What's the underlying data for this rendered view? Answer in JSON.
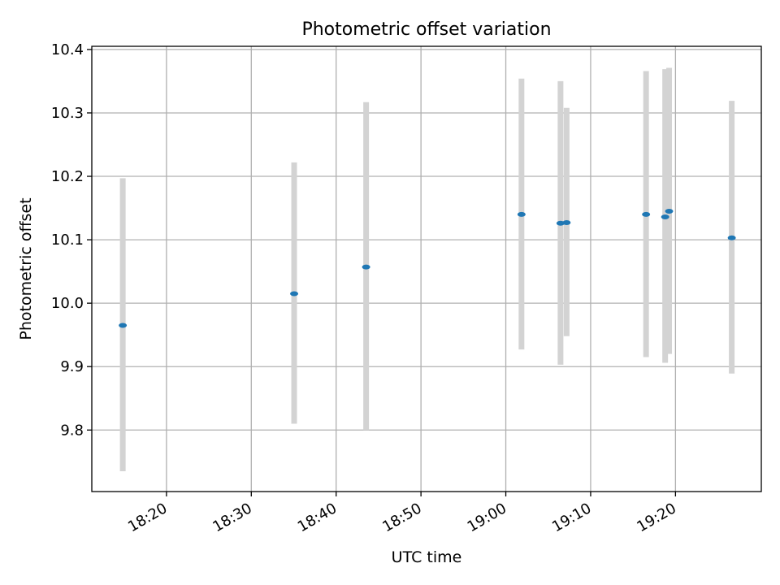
{
  "chart_data": {
    "type": "scatter",
    "title": "Photometric offset variation",
    "xlabel": "UTC time",
    "ylabel": "Photometric offset",
    "xlim": [
      "18:11:12",
      "19:30:07"
    ],
    "ylim": [
      9.703,
      10.405
    ],
    "x_ticks": [
      "18:20",
      "18:30",
      "18:40",
      "18:50",
      "19:00",
      "19:10",
      "19:20"
    ],
    "y_ticks": [
      "9.8",
      "9.9",
      "10.0",
      "10.1",
      "10.2",
      "10.3",
      "10.4"
    ],
    "grid": true,
    "series": [
      {
        "marker_color": "#1f77b4",
        "errorbar_color": "#d3d3d3",
        "points": [
          {
            "x": "18:14:51",
            "y": 9.965,
            "ylow": 9.735,
            "yhigh": 10.197
          },
          {
            "x": "18:35:03",
            "y": 10.015,
            "ylow": 9.81,
            "yhigh": 10.222
          },
          {
            "x": "18:43:32",
            "y": 10.057,
            "ylow": 9.8,
            "yhigh": 10.317
          },
          {
            "x": "19:01:51",
            "y": 10.14,
            "ylow": 9.927,
            "yhigh": 10.354
          },
          {
            "x": "19:06:27",
            "y": 10.126,
            "ylow": 9.903,
            "yhigh": 10.35
          },
          {
            "x": "19:07:10",
            "y": 10.127,
            "ylow": 9.948,
            "yhigh": 10.308
          },
          {
            "x": "19:16:32",
            "y": 10.14,
            "ylow": 9.915,
            "yhigh": 10.366
          },
          {
            "x": "19:18:47",
            "y": 10.136,
            "ylow": 9.906,
            "yhigh": 10.369
          },
          {
            "x": "19:19:15",
            "y": 10.145,
            "ylow": 9.92,
            "yhigh": 10.371
          },
          {
            "x": "19:26:38",
            "y": 10.103,
            "ylow": 9.889,
            "yhigh": 10.319
          }
        ]
      }
    ]
  }
}
